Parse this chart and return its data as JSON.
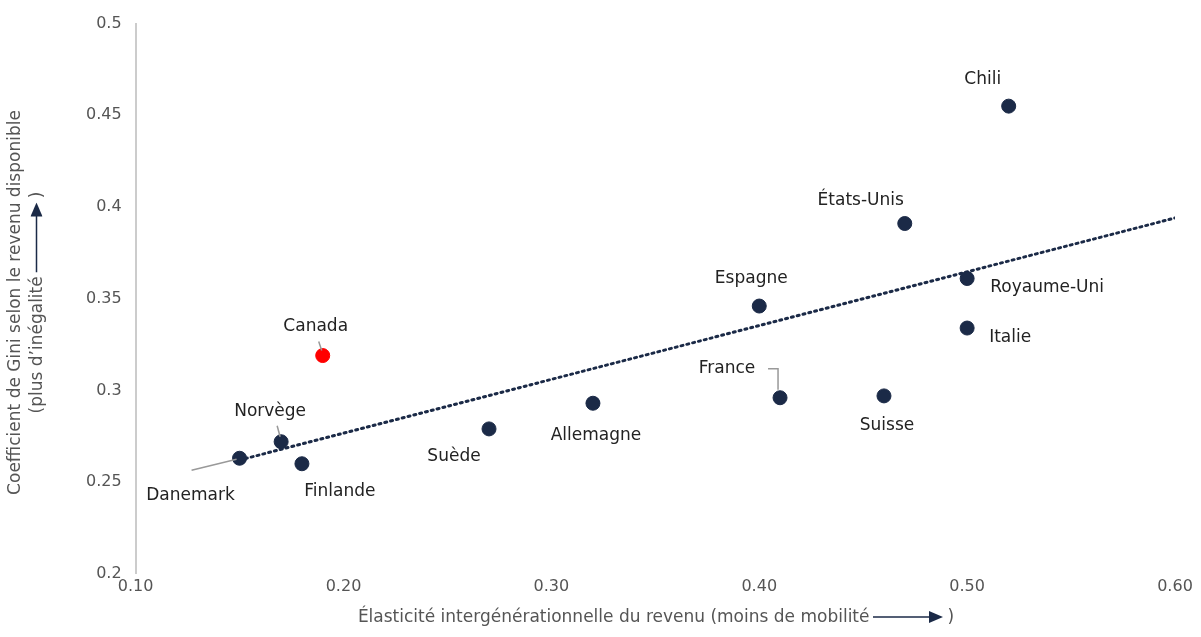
{
  "chart_data": {
    "type": "scatter",
    "xlabel": "Élasticité intergénérationnelle du revenu (moins de mobilité )",
    "ylabel": "Coefficient de Gini selon le revenu disponible (plus d’inégalité )",
    "xlim": [
      0.1,
      0.6
    ],
    "xticks": [
      {
        "value": 0.1,
        "label": "0.10"
      },
      {
        "value": 0.2,
        "label": "0.20"
      },
      {
        "value": 0.3,
        "label": "0.30"
      },
      {
        "value": 0.4,
        "label": "0.40"
      },
      {
        "value": 0.5,
        "label": "0.50"
      },
      {
        "value": 0.6,
        "label": "0.60"
      }
    ],
    "ylim": [
      0.2,
      0.5
    ],
    "yticks": [
      0.2,
      0.25,
      0.3,
      0.35,
      0.4,
      0.45,
      0.5
    ],
    "grid": false,
    "legend": false,
    "marker": "circle",
    "series": [
      {
        "type": "scatter",
        "x": [
          0.15,
          0.17,
          0.18,
          0.19,
          0.27,
          0.32,
          0.4,
          0.41,
          0.46,
          0.47,
          0.5,
          0.5,
          0.52
        ],
        "values": [
          0.263,
          0.272,
          0.26,
          0.319,
          0.279,
          0.293,
          0.346,
          0.296,
          0.297,
          0.391,
          0.361,
          0.334,
          0.455
        ],
        "colors": [
          "#1b2a47",
          "#1b2a47",
          "#1b2a47",
          "#ff0000",
          "#1b2a47",
          "#1b2a47",
          "#1b2a47",
          "#1b2a47",
          "#1b2a47",
          "#1b2a47",
          "#1b2a47",
          "#1b2a47",
          "#1b2a47"
        ]
      },
      {
        "type": "line",
        "x": [
          0.15,
          0.6
        ],
        "values": [
          0.262,
          0.394
        ],
        "color": "#1b2a47",
        "line_style": "dotted",
        "marker": "none"
      }
    ],
    "annotations": [
      {
        "text": "Danemark",
        "x": 0.15,
        "y": 0.263
      },
      {
        "text": "Norvège",
        "x": 0.17,
        "y": 0.272
      },
      {
        "text": "Finlande",
        "x": 0.18,
        "y": 0.26
      },
      {
        "text": "Canada",
        "x": 0.19,
        "y": 0.319
      },
      {
        "text": "Suède",
        "x": 0.27,
        "y": 0.279
      },
      {
        "text": "Allemagne",
        "x": 0.32,
        "y": 0.293
      },
      {
        "text": "Espagne",
        "x": 0.4,
        "y": 0.346
      },
      {
        "text": "France",
        "x": 0.41,
        "y": 0.296
      },
      {
        "text": "Suisse",
        "x": 0.46,
        "y": 0.297
      },
      {
        "text": "États-Unis",
        "x": 0.47,
        "y": 0.391
      },
      {
        "text": "Royaume-Uni",
        "x": 0.5,
        "y": 0.361
      },
      {
        "text": "Italie",
        "x": 0.5,
        "y": 0.334
      },
      {
        "text": "Chili",
        "x": 0.52,
        "y": 0.455
      }
    ]
  }
}
